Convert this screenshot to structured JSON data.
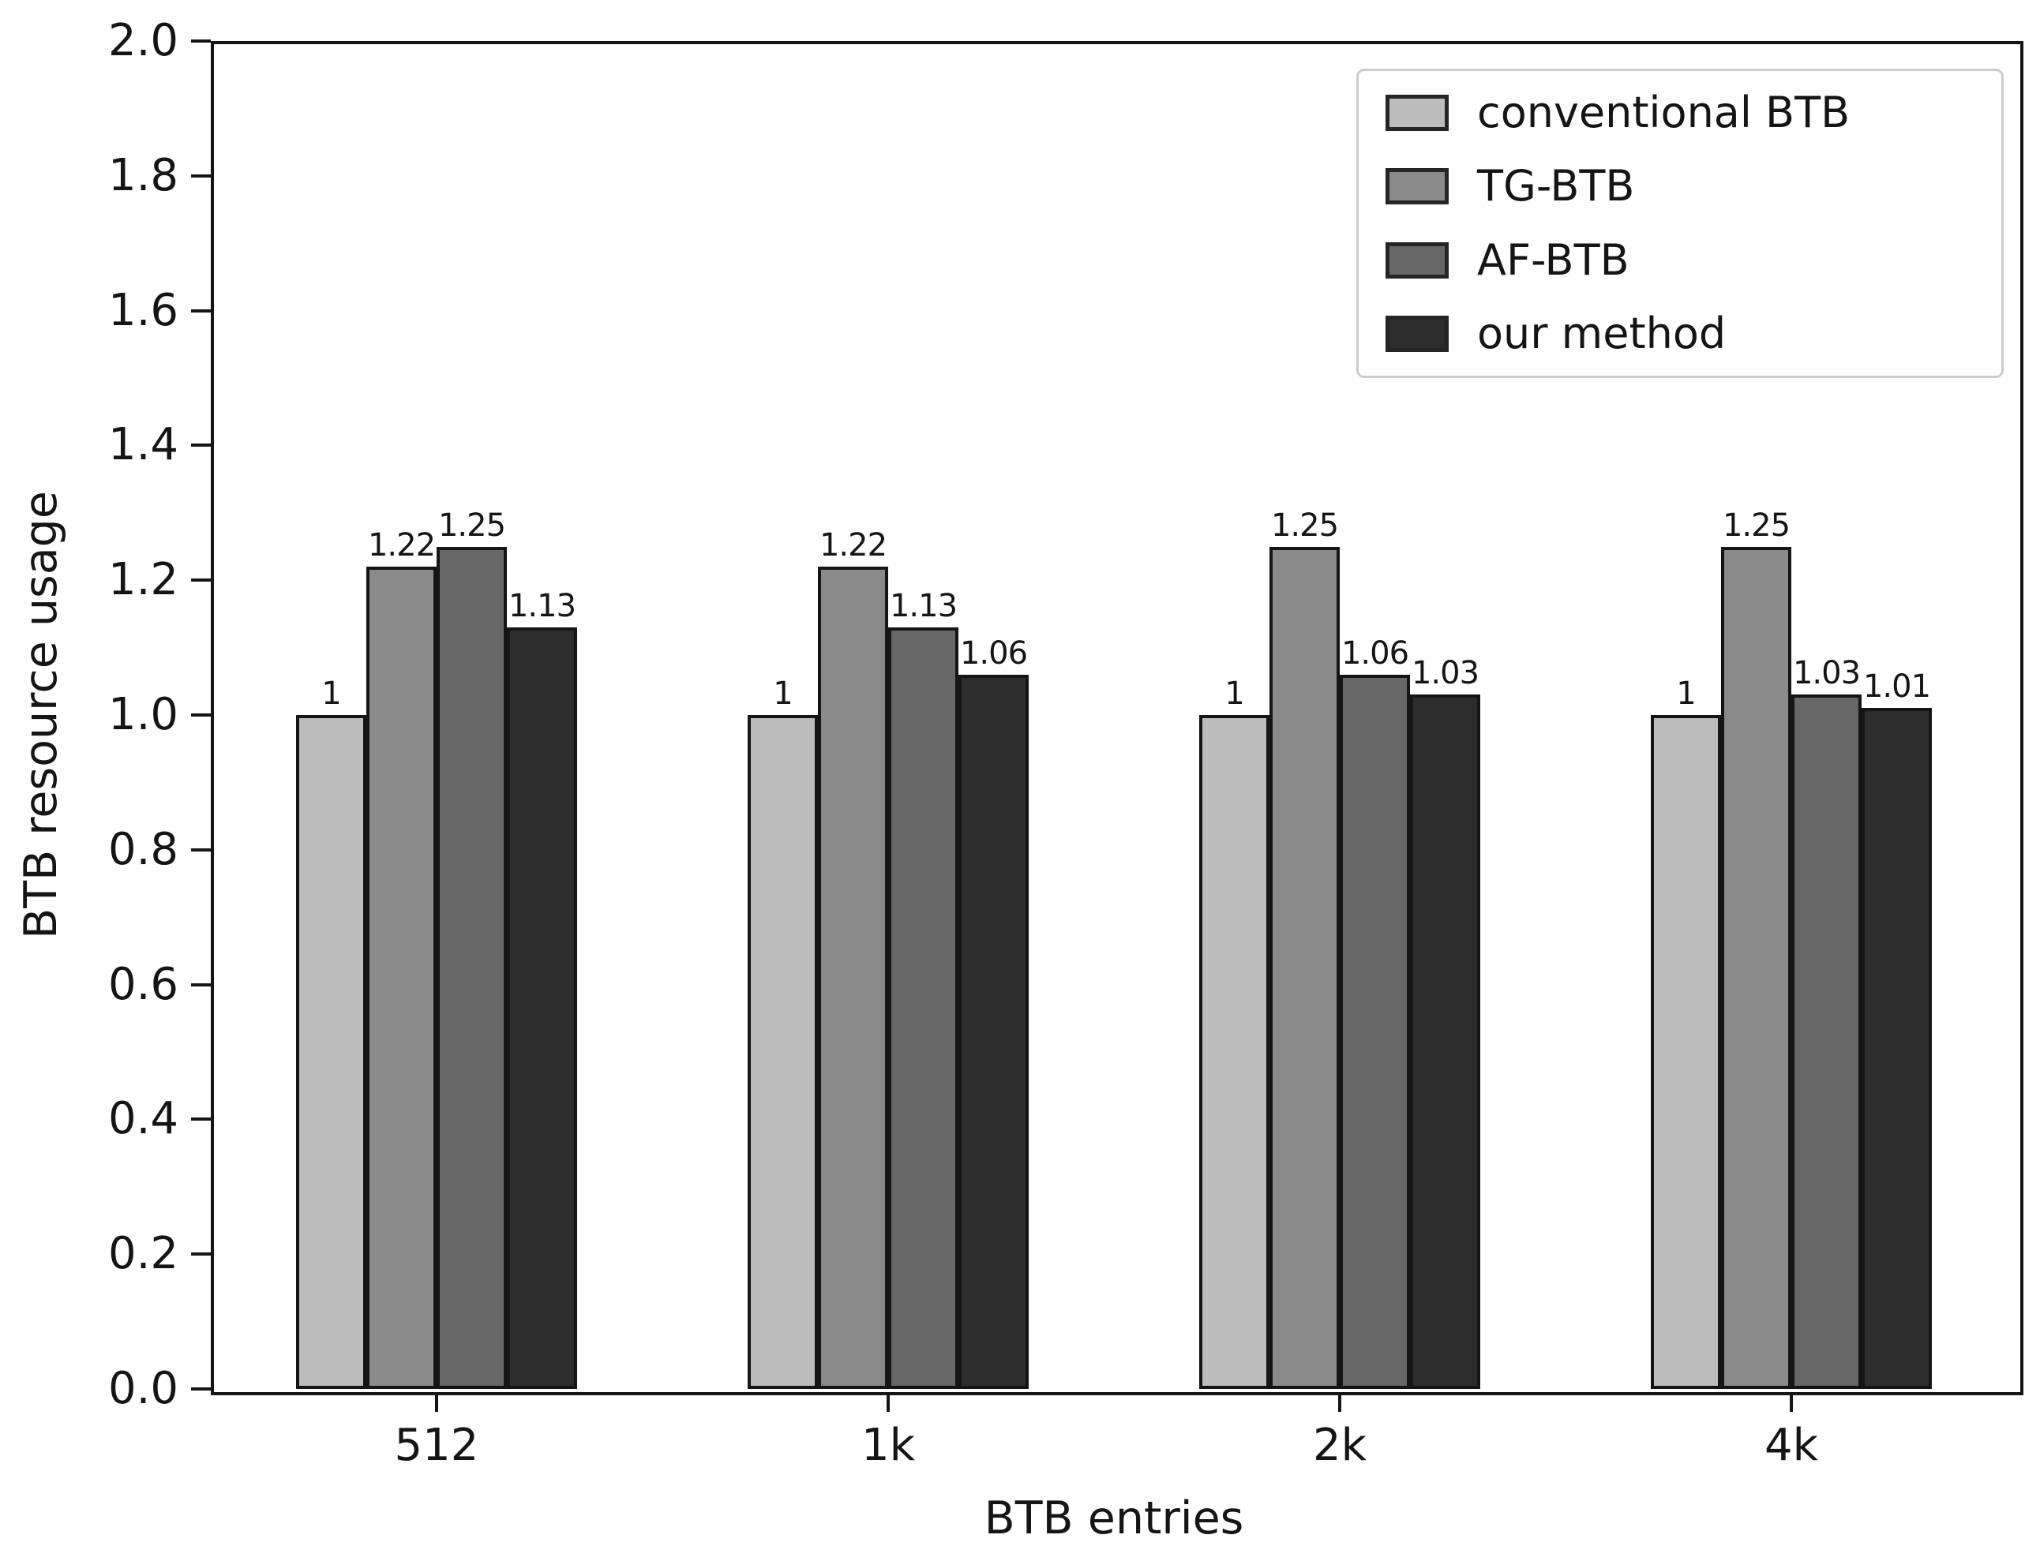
{
  "chart_data": {
    "type": "bar",
    "title": "",
    "xlabel": "BTB entries",
    "ylabel": "BTB resource usage",
    "categories": [
      "512",
      "1k",
      "2k",
      "4k"
    ],
    "series": [
      {
        "name": "conventional BTB",
        "color": "#bcbcbc",
        "values": [
          1,
          1,
          1,
          1
        ],
        "labels": [
          "1",
          "1",
          "1",
          "1"
        ]
      },
      {
        "name": "TG-BTB",
        "color": "#8a8a8a",
        "values": [
          1.22,
          1.22,
          1.25,
          1.25
        ],
        "labels": [
          "1.22",
          "1.22",
          "1.25",
          "1.25"
        ]
      },
      {
        "name": "AF-BTB",
        "color": "#676767",
        "values": [
          1.25,
          1.13,
          1.06,
          1.03
        ],
        "labels": [
          "1.25",
          "1.13",
          "1.06",
          "1.03"
        ]
      },
      {
        "name": "our method",
        "color": "#2d2d2d",
        "values": [
          1.13,
          1.06,
          1.03,
          1.01
        ],
        "labels": [
          "1.13",
          "1.06",
          "1.03",
          "1.01"
        ]
      }
    ],
    "ylim": [
      0.0,
      2.0
    ],
    "yticks": [
      "0.0",
      "0.2",
      "0.4",
      "0.6",
      "0.8",
      "1.0",
      "1.2",
      "1.4",
      "1.6",
      "1.8",
      "2.0"
    ],
    "grid": false,
    "legend_position": "upper right",
    "colors": {
      "bar_edge": "#151515",
      "axis": "#151515",
      "text": "#151515",
      "legend_border": "#cccccc",
      "background": "#ffffff"
    }
  }
}
